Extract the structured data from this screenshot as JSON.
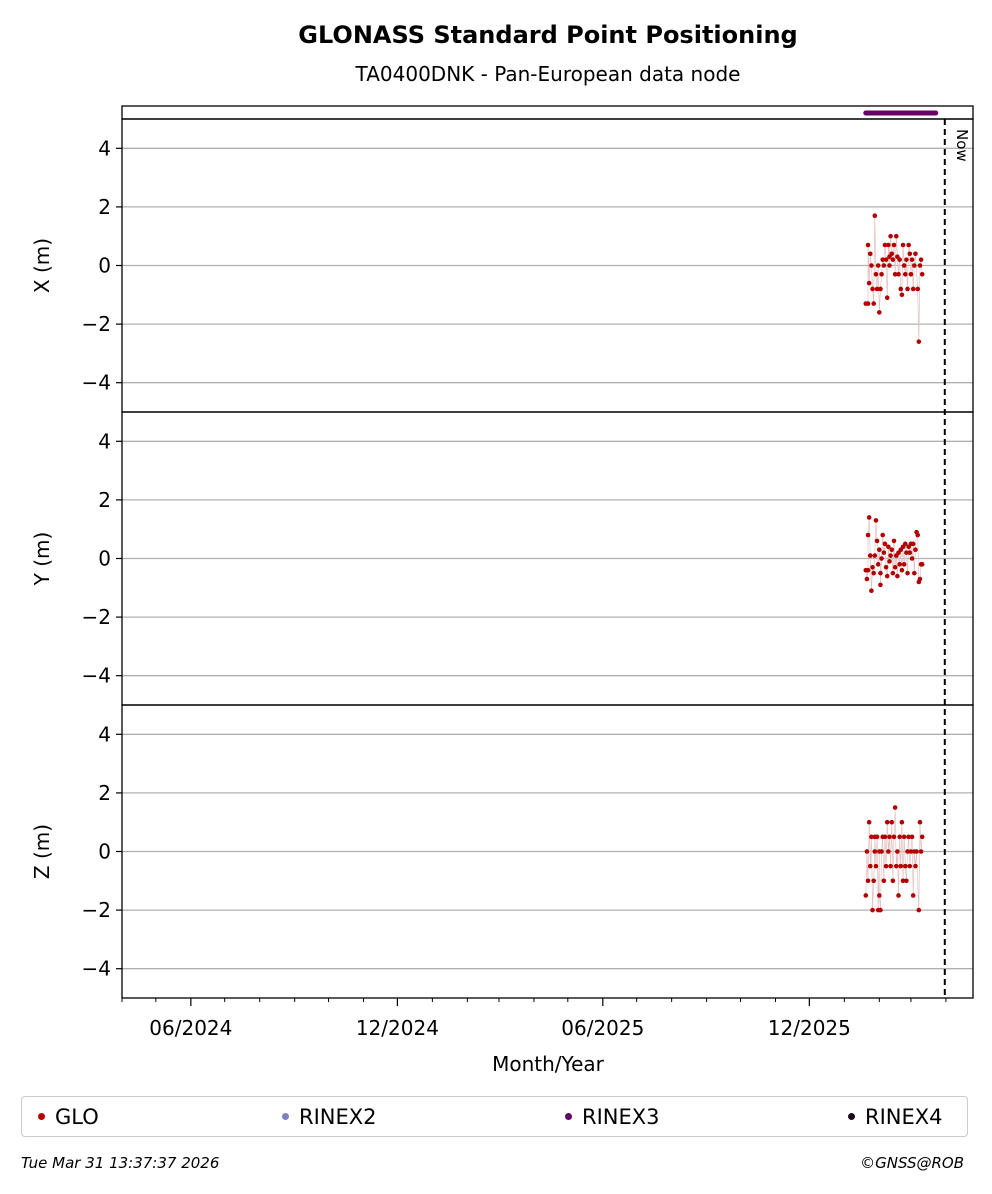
{
  "chart_data": {
    "type": "scatter",
    "title": "GLONASS Standard Point Positioning",
    "subtitle": "TA0400DNK - Pan-European data node",
    "xlabel": "Month/Year",
    "x_range": [
      "2024-04-01",
      "2026-04-25"
    ],
    "x_ticks": [
      {
        "date": "2024-06-01",
        "label": "06/2024"
      },
      {
        "date": "2024-12-01",
        "label": "12/2024"
      },
      {
        "date": "2025-06-01",
        "label": "06/2025"
      },
      {
        "date": "2025-12-01",
        "label": "12/2025"
      }
    ],
    "now": {
      "date": "2026-03-31",
      "label": "Now"
    },
    "grid": "horizontal",
    "legend_position": "bottom",
    "rinex_availability": {
      "name": "RINEX3",
      "color": "#660066",
      "start": "2026-01-20",
      "end": "2026-03-23"
    },
    "panels": [
      {
        "name": "X",
        "ylabel": "X (m)",
        "ylim": [
          -5,
          5
        ],
        "yticks": [
          4,
          2,
          0,
          -2,
          -4
        ],
        "points": [
          [
            "2026-01-20",
            -1.3
          ],
          [
            "2026-01-22",
            -1.3
          ],
          [
            "2026-01-22",
            0.7
          ],
          [
            "2026-01-23",
            -0.6
          ],
          [
            "2026-01-24",
            0.4
          ],
          [
            "2026-01-25",
            0.0
          ],
          [
            "2026-01-26",
            -0.8
          ],
          [
            "2026-01-27",
            -1.3
          ],
          [
            "2026-01-28",
            1.7
          ],
          [
            "2026-01-29",
            -0.3
          ],
          [
            "2026-01-30",
            -0.8
          ],
          [
            "2026-01-31",
            0.0
          ],
          [
            "2026-02-01",
            -1.6
          ],
          [
            "2026-02-02",
            -0.8
          ],
          [
            "2026-02-03",
            -0.3
          ],
          [
            "2026-02-04",
            0.2
          ],
          [
            "2026-02-05",
            0.0
          ],
          [
            "2026-02-06",
            0.7
          ],
          [
            "2026-02-07",
            0.2
          ],
          [
            "2026-02-08",
            -1.1
          ],
          [
            "2026-02-09",
            0.7
          ],
          [
            "2026-02-10",
            0.0
          ],
          [
            "2026-02-10",
            0.3
          ],
          [
            "2026-02-11",
            1.0
          ],
          [
            "2026-02-12",
            0.4
          ],
          [
            "2026-02-13",
            0.2
          ],
          [
            "2026-02-14",
            0.7
          ],
          [
            "2026-02-15",
            -0.3
          ],
          [
            "2026-02-16",
            1.0
          ],
          [
            "2026-02-17",
            0.3
          ],
          [
            "2026-02-18",
            -0.3
          ],
          [
            "2026-02-19",
            0.2
          ],
          [
            "2026-02-20",
            -0.8
          ],
          [
            "2026-02-21",
            -1.0
          ],
          [
            "2026-02-22",
            0.7
          ],
          [
            "2026-02-23",
            0.0
          ],
          [
            "2026-02-24",
            -0.3
          ],
          [
            "2026-02-25",
            0.2
          ],
          [
            "2026-02-26",
            -0.8
          ],
          [
            "2026-02-27",
            0.7
          ],
          [
            "2026-02-28",
            0.4
          ],
          [
            "2026-03-01",
            -0.3
          ],
          [
            "2026-03-02",
            0.2
          ],
          [
            "2026-03-03",
            -0.8
          ],
          [
            "2026-03-04",
            0.0
          ],
          [
            "2026-03-05",
            0.4
          ],
          [
            "2026-03-07",
            -0.8
          ],
          [
            "2026-03-08",
            -2.6
          ],
          [
            "2026-03-09",
            0.0
          ],
          [
            "2026-03-10",
            0.2
          ],
          [
            "2026-03-11",
            -0.3
          ]
        ]
      },
      {
        "name": "Y",
        "ylabel": "Y (m)",
        "ylim": [
          -5,
          5
        ],
        "yticks": [
          4,
          2,
          0,
          -2,
          -4
        ],
        "points": [
          [
            "2026-01-20",
            -0.4
          ],
          [
            "2026-01-21",
            -0.7
          ],
          [
            "2026-01-22",
            -0.4
          ],
          [
            "2026-01-22",
            0.8
          ],
          [
            "2026-01-23",
            1.4
          ],
          [
            "2026-01-24",
            0.1
          ],
          [
            "2026-01-25",
            -1.1
          ],
          [
            "2026-01-26",
            -0.3
          ],
          [
            "2026-01-27",
            -0.5
          ],
          [
            "2026-01-28",
            0.1
          ],
          [
            "2026-01-29",
            1.3
          ],
          [
            "2026-01-30",
            0.6
          ],
          [
            "2026-01-31",
            -0.2
          ],
          [
            "2026-02-01",
            0.3
          ],
          [
            "2026-02-02",
            -0.5
          ],
          [
            "2026-02-02",
            -0.9
          ],
          [
            "2026-02-03",
            0.0
          ],
          [
            "2026-02-04",
            0.8
          ],
          [
            "2026-02-05",
            0.2
          ],
          [
            "2026-02-06",
            0.5
          ],
          [
            "2026-02-07",
            -0.3
          ],
          [
            "2026-02-08",
            -0.6
          ],
          [
            "2026-02-09",
            0.4
          ],
          [
            "2026-02-10",
            -0.1
          ],
          [
            "2026-02-11",
            0.1
          ],
          [
            "2026-02-12",
            0.3
          ],
          [
            "2026-02-13",
            -0.5
          ],
          [
            "2026-02-14",
            0.6
          ],
          [
            "2026-02-15",
            -0.3
          ],
          [
            "2026-02-16",
            0.1
          ],
          [
            "2026-02-17",
            -0.6
          ],
          [
            "2026-02-18",
            0.2
          ],
          [
            "2026-02-19",
            -0.2
          ],
          [
            "2026-02-20",
            0.3
          ],
          [
            "2026-02-21",
            -0.4
          ],
          [
            "2026-02-22",
            0.4
          ],
          [
            "2026-02-23",
            -0.2
          ],
          [
            "2026-02-24",
            0.5
          ],
          [
            "2026-02-25",
            0.2
          ],
          [
            "2026-02-26",
            -0.5
          ],
          [
            "2026-02-27",
            0.4
          ],
          [
            "2026-02-28",
            0.2
          ],
          [
            "2026-03-01",
            0.5
          ],
          [
            "2026-03-02",
            0.0
          ],
          [
            "2026-03-03",
            0.5
          ],
          [
            "2026-03-04",
            -0.5
          ],
          [
            "2026-03-05",
            0.3
          ],
          [
            "2026-03-06",
            0.9
          ],
          [
            "2026-03-07",
            0.8
          ],
          [
            "2026-03-08",
            -0.8
          ],
          [
            "2026-03-09",
            -0.7
          ],
          [
            "2026-03-10",
            -0.2
          ],
          [
            "2026-03-11",
            -0.2
          ]
        ]
      },
      {
        "name": "Z",
        "ylabel": "Z (m)",
        "ylim": [
          -5,
          5
        ],
        "yticks": [
          4,
          2,
          0,
          -2,
          -4
        ],
        "points": [
          [
            "2026-01-20",
            -1.5
          ],
          [
            "2026-01-21",
            0.0
          ],
          [
            "2026-01-22",
            -1.0
          ],
          [
            "2026-01-23",
            1.0
          ],
          [
            "2026-01-24",
            -0.5
          ],
          [
            "2026-01-25",
            0.5
          ],
          [
            "2026-01-26",
            -2.0
          ],
          [
            "2026-01-27",
            -1.0
          ],
          [
            "2026-01-28",
            0.0
          ],
          [
            "2026-01-28",
            0.5
          ],
          [
            "2026-01-29",
            -0.5
          ],
          [
            "2026-01-30",
            0.5
          ],
          [
            "2026-01-31",
            -2.0
          ],
          [
            "2026-02-01",
            0.0
          ],
          [
            "2026-02-01",
            -1.5
          ],
          [
            "2026-02-02",
            -2.0
          ],
          [
            "2026-02-03",
            0.0
          ],
          [
            "2026-02-04",
            0.5
          ],
          [
            "2026-02-05",
            -1.0
          ],
          [
            "2026-02-06",
            0.5
          ],
          [
            "2026-02-07",
            -0.5
          ],
          [
            "2026-02-08",
            1.0
          ],
          [
            "2026-02-09",
            0.0
          ],
          [
            "2026-02-10",
            0.5
          ],
          [
            "2026-02-11",
            -0.5
          ],
          [
            "2026-02-12",
            1.0
          ],
          [
            "2026-02-13",
            -1.0
          ],
          [
            "2026-02-14",
            0.5
          ],
          [
            "2026-02-15",
            1.5
          ],
          [
            "2026-02-16",
            -0.5
          ],
          [
            "2026-02-17",
            0.0
          ],
          [
            "2026-02-18",
            -1.5
          ],
          [
            "2026-02-19",
            0.5
          ],
          [
            "2026-02-20",
            -0.5
          ],
          [
            "2026-02-21",
            1.0
          ],
          [
            "2026-02-22",
            -1.0
          ],
          [
            "2026-02-23",
            0.5
          ],
          [
            "2026-02-24",
            -0.5
          ],
          [
            "2026-02-25",
            -1.0
          ],
          [
            "2026-02-26",
            0.0
          ],
          [
            "2026-02-27",
            0.5
          ],
          [
            "2026-02-28",
            -0.5
          ],
          [
            "2026-03-01",
            0.0
          ],
          [
            "2026-03-02",
            0.5
          ],
          [
            "2026-03-03",
            -1.5
          ],
          [
            "2026-03-04",
            0.0
          ],
          [
            "2026-03-05",
            -0.5
          ],
          [
            "2026-03-06",
            0.0
          ],
          [
            "2026-03-08",
            -2.0
          ],
          [
            "2026-03-09",
            1.0
          ],
          [
            "2026-03-10",
            0.0
          ],
          [
            "2026-03-11",
            0.5
          ]
        ]
      }
    ]
  },
  "legend": [
    {
      "label": "GLO",
      "color": "#b30000"
    },
    {
      "label": "RINEX2",
      "color": "#8080c0"
    },
    {
      "label": "RINEX3",
      "color": "#660066"
    },
    {
      "label": "RINEX4",
      "color": "#1a0a1a"
    }
  ],
  "footer": {
    "timestamp": "Tue Mar 31 13:37:37 2026",
    "credit": "©GNSS@ROB"
  }
}
